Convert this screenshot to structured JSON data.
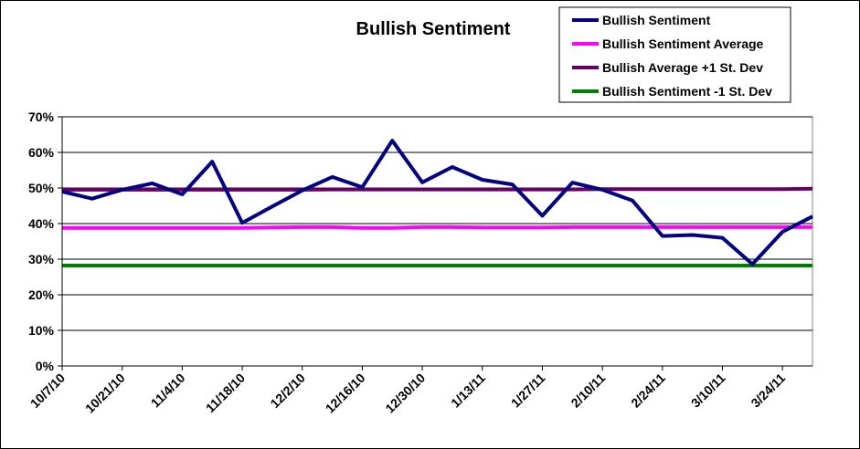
{
  "chart_data": {
    "type": "line",
    "title": "Bullish Sentiment",
    "xlabel": "",
    "ylabel": "",
    "ylim": [
      0,
      70
    ],
    "y_ticks": [
      "0%",
      "10%",
      "20%",
      "30%",
      "40%",
      "50%",
      "60%",
      "70%"
    ],
    "x_tick_labels": [
      "10/7/10",
      "10/21/10",
      "11/4/10",
      "11/18/10",
      "12/2/10",
      "12/16/10",
      "12/30/10",
      "1/13/11",
      "1/27/11",
      "2/10/11",
      "2/24/11",
      "3/10/11",
      "3/24/11"
    ],
    "x": [
      "10/7/10",
      "10/14/10",
      "10/21/10",
      "10/28/10",
      "11/4/10",
      "11/11/10",
      "11/18/10",
      "11/25/10",
      "12/2/10",
      "12/9/10",
      "12/16/10",
      "12/23/10",
      "12/30/10",
      "1/6/11",
      "1/13/11",
      "1/20/11",
      "1/27/11",
      "2/3/11",
      "2/10/11",
      "2/17/11",
      "2/24/11",
      "3/3/11",
      "3/10/11",
      "3/17/11",
      "3/24/11",
      "3/31/11"
    ],
    "grid": true,
    "legend_position": "top-right",
    "series": [
      {
        "name": "Bullish Sentiment",
        "color": "#000080",
        "values": [
          49.0,
          47.0,
          49.5,
          51.3,
          48.2,
          57.4,
          40.2,
          44.8,
          49.3,
          53.1,
          50.2,
          63.3,
          51.6,
          55.9,
          52.3,
          51.0,
          42.2,
          51.5,
          49.5,
          46.5,
          36.5,
          36.8,
          36.0,
          28.6,
          37.7,
          42.0
        ]
      },
      {
        "name": "Bullish Sentiment Average",
        "color": "#ff00ff",
        "values": [
          38.8,
          38.8,
          38.8,
          38.8,
          38.8,
          38.8,
          38.8,
          38.9,
          39.0,
          39.0,
          38.8,
          38.8,
          39.0,
          39.0,
          38.9,
          38.9,
          38.9,
          39.0,
          39.0,
          39.0,
          39.0,
          39.0,
          39.0,
          39.0,
          39.0,
          39.0
        ]
      },
      {
        "name": "Bullish Average +1 St. Dev",
        "color": "#660066",
        "values": [
          49.5,
          49.5,
          49.5,
          49.5,
          49.5,
          49.5,
          49.5,
          49.5,
          49.5,
          49.6,
          49.6,
          49.6,
          49.6,
          49.6,
          49.6,
          49.6,
          49.6,
          49.6,
          49.7,
          49.7,
          49.7,
          49.7,
          49.7,
          49.7,
          49.7,
          49.8
        ]
      },
      {
        "name": "Bullish Sentiment -1 St. Dev",
        "color": "#008000",
        "values": [
          28.2,
          28.2,
          28.2,
          28.2,
          28.2,
          28.2,
          28.2,
          28.2,
          28.2,
          28.2,
          28.2,
          28.2,
          28.2,
          28.2,
          28.2,
          28.2,
          28.2,
          28.2,
          28.2,
          28.2,
          28.2,
          28.2,
          28.2,
          28.2,
          28.2,
          28.2
        ]
      }
    ]
  }
}
